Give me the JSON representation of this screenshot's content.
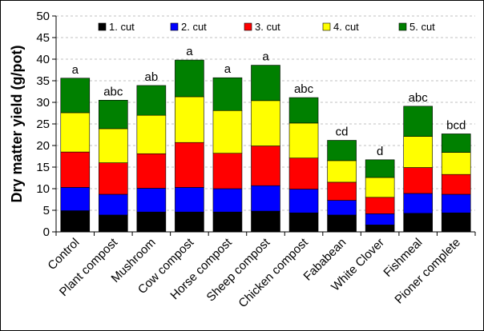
{
  "chart_data": {
    "type": "bar",
    "stacked": true,
    "title": "",
    "xlabel": "",
    "ylabel": "Dry matter yield (g/pot)",
    "ylim": [
      0,
      50
    ],
    "yticks": [
      0,
      5,
      10,
      15,
      20,
      25,
      30,
      35,
      40,
      45,
      50
    ],
    "grid": true,
    "legend_position": "top-inside",
    "categories": [
      "Control",
      "Plant compost",
      "Mushroom",
      "Cow compost",
      "Horse compost",
      "Sheep compost",
      "Chicken compost",
      "Fababean",
      "White Clover",
      "Fishmeal",
      "Pioner complete"
    ],
    "significance_labels": [
      "a",
      "abc",
      "ab",
      "a",
      "a",
      "a",
      "abc",
      "cd",
      "d",
      "abc",
      "bcd"
    ],
    "series": [
      {
        "name": "1. cut",
        "color": "#000000",
        "values": [
          4.9,
          3.9,
          4.6,
          4.6,
          4.6,
          4.8,
          4.4,
          3.9,
          1.6,
          4.3,
          4.4
        ]
      },
      {
        "name": "2. cut",
        "color": "#0000ff",
        "values": [
          5.4,
          4.8,
          5.5,
          5.7,
          5.4,
          5.9,
          5.5,
          3.4,
          2.6,
          4.6,
          4.3
        ]
      },
      {
        "name": "3. cut",
        "color": "#ff0000",
        "values": [
          8.2,
          7.3,
          8.0,
          10.4,
          8.2,
          9.2,
          7.2,
          4.2,
          3.8,
          6.0,
          4.6
        ]
      },
      {
        "name": "4. cut",
        "color": "#ffff00",
        "values": [
          9.1,
          7.9,
          8.9,
          10.6,
          9.9,
          10.5,
          8.1,
          5.0,
          4.6,
          7.2,
          5.1
        ]
      },
      {
        "name": "5. cut",
        "color": "#008000",
        "values": [
          8.0,
          6.6,
          6.9,
          8.5,
          7.6,
          8.2,
          5.9,
          4.7,
          4.1,
          7.0,
          4.3
        ]
      }
    ]
  }
}
